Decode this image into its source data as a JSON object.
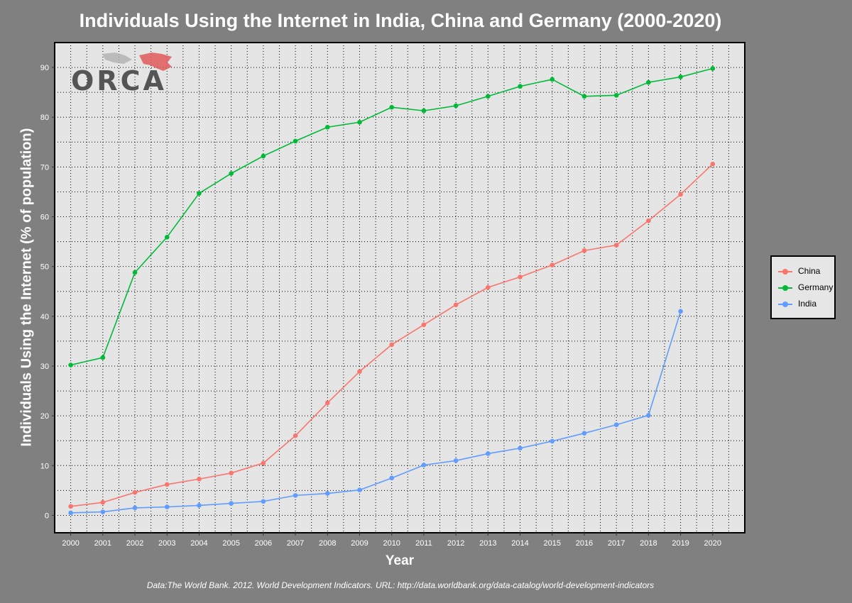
{
  "chart_data": {
    "type": "line",
    "title": "Individuals Using the Internet in India, China and Germany (2000-2020)",
    "xlabel": "Year",
    "ylabel": "Individuals Using the Internet (% of population)",
    "caption": "Data:The World Bank. 2012. World Development Indicators. URL: http://data.worldbank.org/data-catalog/world-development-indicators",
    "x": [
      2000,
      2001,
      2002,
      2003,
      2004,
      2005,
      2006,
      2007,
      2008,
      2009,
      2010,
      2011,
      2012,
      2013,
      2014,
      2015,
      2016,
      2017,
      2018,
      2019,
      2020
    ],
    "yticks": [
      0,
      10,
      20,
      30,
      40,
      50,
      60,
      70,
      80,
      90
    ],
    "ylim": [
      -3.5,
      95
    ],
    "xlim": [
      1999.5,
      2021
    ],
    "grid": true,
    "legend_position": "right",
    "series": [
      {
        "name": "China",
        "color": "#F8766D",
        "values": [
          1.8,
          2.6,
          4.6,
          6.2,
          7.3,
          8.5,
          10.5,
          16.0,
          22.6,
          28.9,
          34.3,
          38.3,
          42.3,
          45.8,
          47.9,
          50.3,
          53.2,
          54.3,
          59.2,
          64.5,
          70.6
        ]
      },
      {
        "name": "Germany",
        "color": "#00BA38",
        "values": [
          30.2,
          31.7,
          48.8,
          55.9,
          64.7,
          68.7,
          72.2,
          75.2,
          78.0,
          79.0,
          82.0,
          81.3,
          82.3,
          84.2,
          86.2,
          87.6,
          84.2,
          84.4,
          87.0,
          88.1,
          89.8
        ]
      },
      {
        "name": "India",
        "color": "#619CFF",
        "values": [
          0.5,
          0.7,
          1.5,
          1.7,
          2.0,
          2.4,
          2.8,
          4.0,
          4.4,
          5.1,
          7.5,
          10.1,
          11.0,
          12.4,
          13.5,
          14.9,
          16.5,
          18.2,
          20.1,
          41.0,
          null
        ]
      }
    ]
  },
  "logo": {
    "text": "ORCA"
  }
}
